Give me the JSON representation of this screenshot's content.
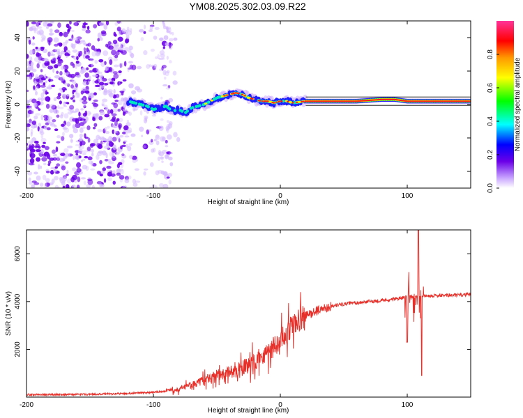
{
  "title": "YM08.2025.302.03.09.R22",
  "colors": {
    "line": "#e8302a",
    "axis": "#000000",
    "background": "#ffffff",
    "dots": "#6a00e8"
  },
  "chart_data": [
    {
      "type": "heatmap",
      "xlabel": "Height of straight line (km)",
      "ylabel": "Frequency (Hz)",
      "xlim": [
        -200,
        150
      ],
      "ylim": [
        -50,
        50
      ],
      "xticks": [
        -200,
        -100,
        0,
        100
      ],
      "yticks": [
        -40,
        -20,
        0,
        20,
        40
      ],
      "colorbar": {
        "label": "Normalized spectral amplitude",
        "range": [
          0,
          1
        ],
        "ticks": [
          0.0,
          0.2,
          0.4,
          0.6,
          0.8
        ]
      },
      "ridge": {
        "x": [
          -120,
          -115,
          -110,
          -105,
          -100,
          -95,
          -90,
          -85,
          -80,
          -75,
          -70,
          -65,
          -60,
          -55,
          -50,
          -45,
          -40,
          -35,
          -30,
          -25,
          -20,
          -15,
          -10,
          -5,
          0,
          5,
          10,
          20,
          40,
          60,
          80,
          90,
          100,
          110,
          120,
          150
        ],
        "y": [
          2,
          1,
          0,
          -1,
          -3,
          -2,
          -1,
          -4,
          -3,
          -5,
          -2,
          -1,
          0,
          2,
          4,
          5,
          6,
          7,
          6,
          4,
          3,
          2,
          2,
          1,
          2,
          2,
          1,
          2,
          2,
          2,
          3,
          3,
          2,
          2,
          2,
          2
        ]
      },
      "noise_region_x": [
        -200,
        -80
      ]
    },
    {
      "type": "line",
      "xlabel": "Height of straight line (km)",
      "ylabel": "SNR (10 * v/v)",
      "xlim": [
        -200,
        150
      ],
      "ylim": [
        0,
        7000
      ],
      "xticks": [
        -200,
        -100,
        0,
        100
      ],
      "yticks": [
        2000,
        4000,
        6000
      ],
      "series": [
        {
          "name": "SNR",
          "x": [
            -200,
            -160,
            -120,
            -100,
            -90,
            -80,
            -70,
            -60,
            -50,
            -40,
            -30,
            -20,
            -10,
            0,
            10,
            20,
            30,
            40,
            50,
            60,
            70,
            80,
            90,
            95,
            100,
            110,
            120,
            130,
            150
          ],
          "y": [
            100,
            110,
            150,
            200,
            250,
            320,
            500,
            700,
            900,
            1000,
            1200,
            1500,
            1900,
            2400,
            3000,
            3400,
            3650,
            3800,
            3900,
            3950,
            4000,
            4050,
            4100,
            4150,
            4200,
            4250,
            4250,
            4250,
            4300
          ]
        }
      ],
      "spikes": [
        {
          "x": 100,
          "y": 2300
        },
        {
          "x": 109,
          "y": 7000
        },
        {
          "x": 111,
          "y": 900
        }
      ]
    }
  ]
}
